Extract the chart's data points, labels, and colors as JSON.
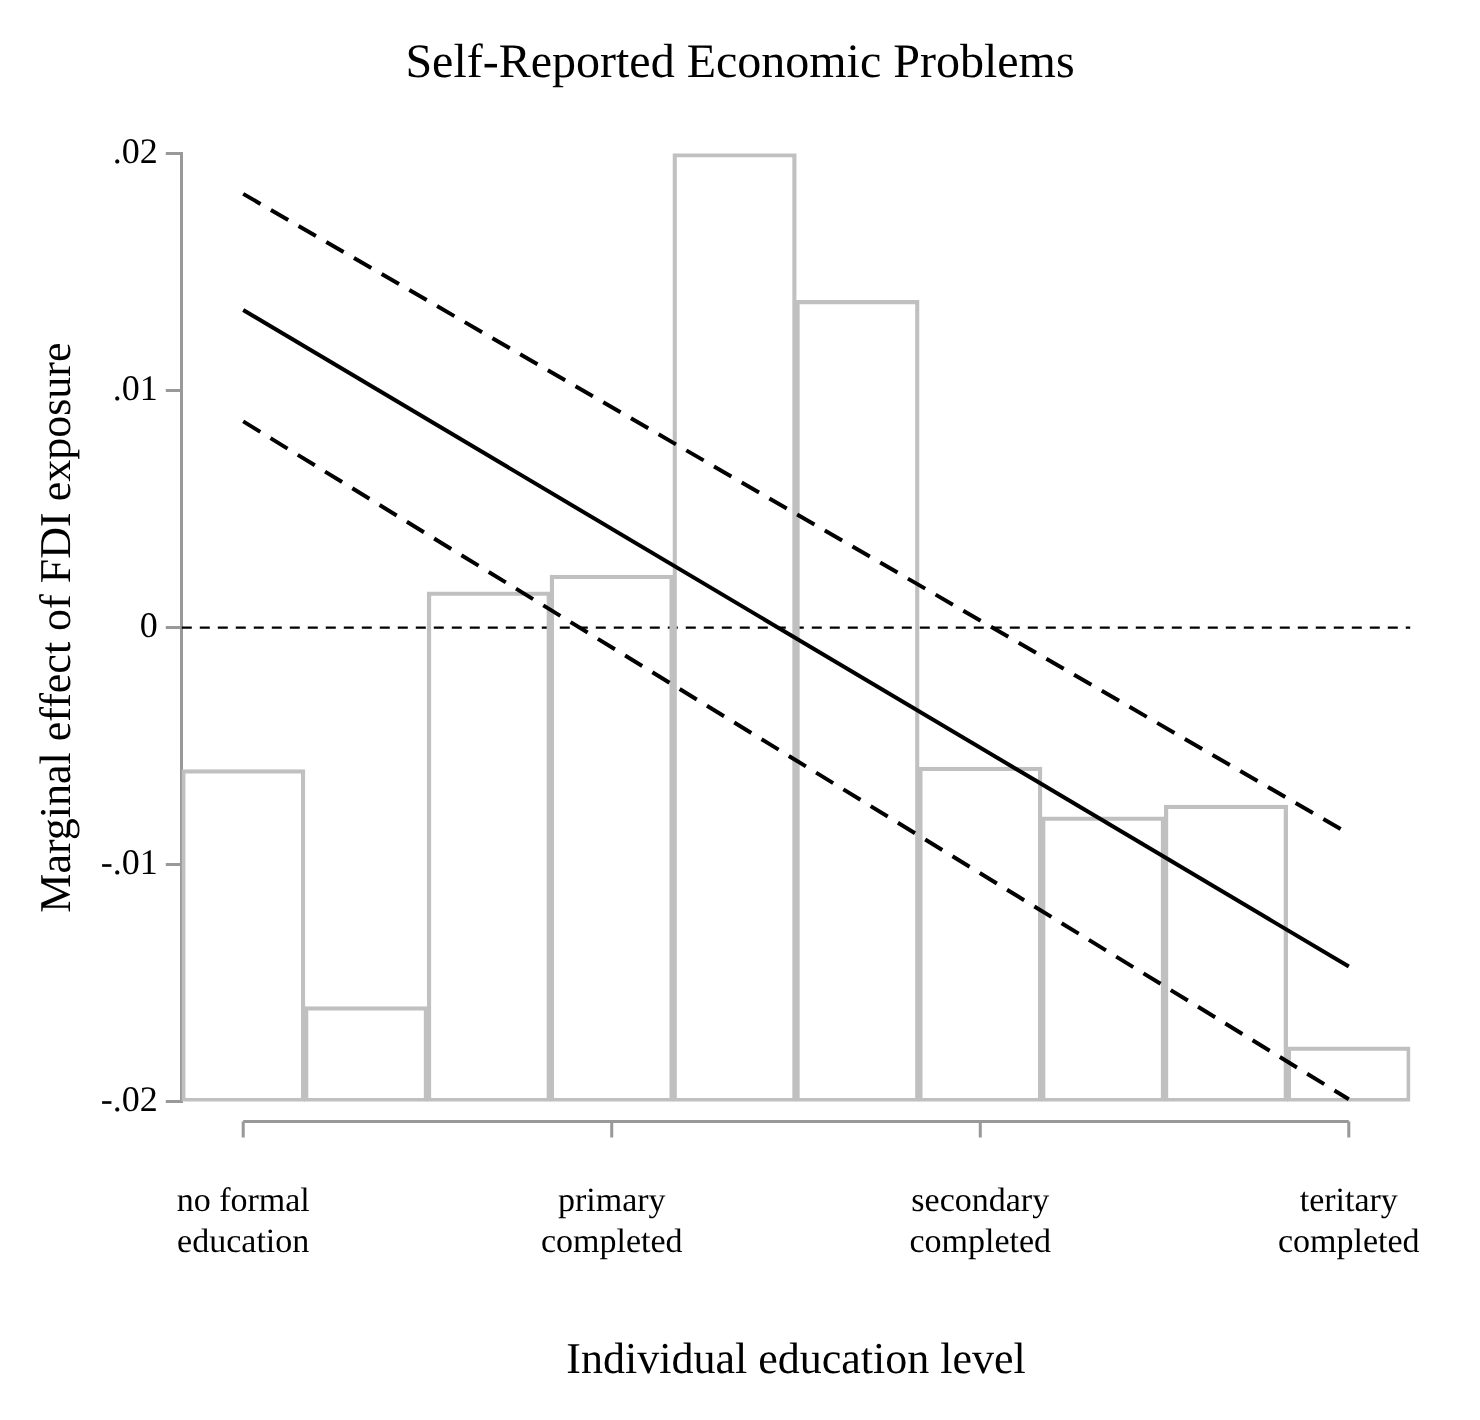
{
  "chart_data": {
    "type": "bar",
    "title": "Self-Reported Economic Problems",
    "xlabel": "Individual education level",
    "ylabel": "Marginal effect of FDI exposure",
    "categories": [
      "no formal\neducation",
      null,
      null,
      "primary\ncompleted",
      null,
      null,
      "secondary\ncompleted",
      null,
      null,
      "teritary\ncompleted"
    ],
    "base": [
      -0.02,
      -0.02,
      -0.02,
      -0.02,
      -0.02,
      -0.02,
      -0.02,
      -0.02,
      -0.02,
      -0.02
    ],
    "values": [
      0.014,
      0.004,
      0.0215,
      0.0222,
      0.04,
      0.0338,
      0.0141,
      0.012,
      0.0125,
      0.0023
    ],
    "color": "#c0c0c0",
    "series": [
      {
        "type": "line",
        "x": [
          "no formal\neducation",
          "teritary\ncompleted"
        ],
        "values": [
          0.0134,
          -0.0143
        ],
        "color": "#000000",
        "line_style": "solid"
      },
      {
        "type": "line",
        "x": [
          "no formal\neducation",
          "teritary\ncompleted"
        ],
        "values": [
          0.0183,
          -0.0087
        ],
        "color": "#000000",
        "line_style": "dashed"
      },
      {
        "type": "line",
        "x": [
          "no formal\neducation",
          "teritary\ncompleted"
        ],
        "values": [
          0.0087,
          -0.0199
        ],
        "color": "#000000",
        "line_style": "dashed"
      }
    ],
    "ylim": [
      -0.02,
      0.02
    ],
    "yticks": [
      {
        "value": -0.02,
        "label": "-.02"
      },
      {
        "value": -0.01,
        "label": "-.01"
      },
      {
        "value": 0,
        "label": "0"
      },
      {
        "value": 0.01,
        "label": ".01"
      },
      {
        "value": 0.02,
        "label": ".02"
      }
    ],
    "ref_lines": [
      {
        "axis": "y",
        "value": 0,
        "color": "#000000",
        "line_style": "dashed"
      }
    ],
    "grid": false,
    "legend": false,
    "marker": "none"
  }
}
